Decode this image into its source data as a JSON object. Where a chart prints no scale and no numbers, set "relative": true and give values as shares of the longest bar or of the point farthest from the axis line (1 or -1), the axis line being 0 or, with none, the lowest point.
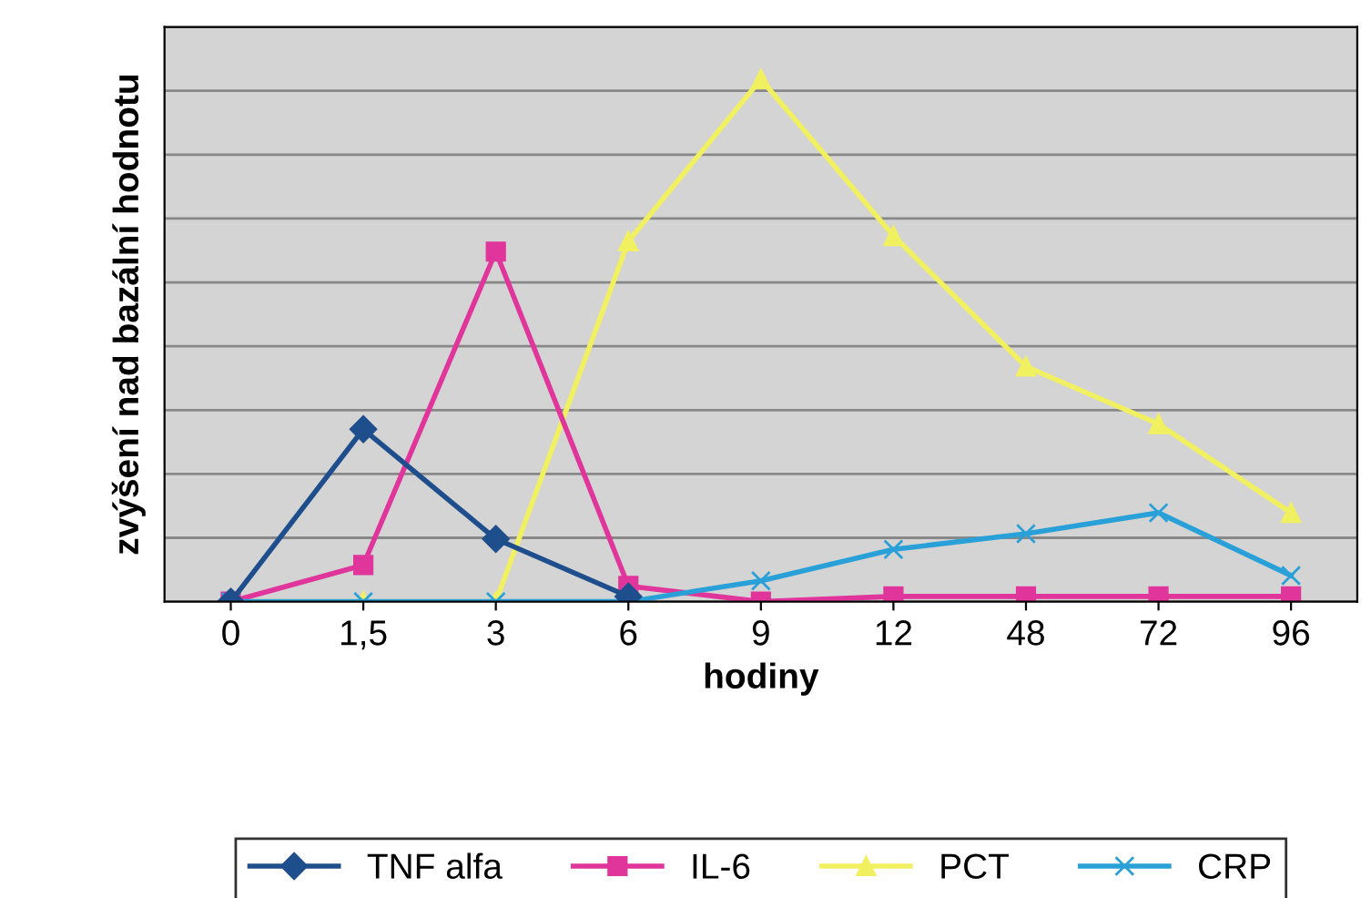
{
  "chart_data": {
    "type": "line",
    "relative": true,
    "ylabel": "zvýšení nad bazální hodnotu",
    "xlabel": "hodiny",
    "categories": [
      "0",
      "1,5",
      "3",
      "6",
      "9",
      "12",
      "48",
      "72",
      "96"
    ],
    "series": [
      {
        "name": "TNF alfa",
        "color": "#1f4e8c",
        "marker": "diamond",
        "values": [
          0,
          0.33,
          0.12,
          0.01,
          null,
          null,
          null,
          null,
          null
        ]
      },
      {
        "name": "IL-6",
        "color": "#e0359a",
        "marker": "square",
        "values": [
          0,
          0.07,
          0.67,
          0.03,
          0,
          0.01,
          0.01,
          0.01,
          0.01
        ]
      },
      {
        "name": "PCT",
        "color": "#f0f060",
        "marker": "triangle",
        "values": [
          0,
          0,
          0,
          0.69,
          1,
          0.7,
          0.45,
          0.34,
          0.17
        ]
      },
      {
        "name": "CRP",
        "color": "#2aa0d8",
        "marker": "cross",
        "values": [
          0,
          0,
          0,
          0,
          0.04,
          0.1,
          0.13,
          0.17,
          0.05
        ]
      }
    ],
    "grid": "y",
    "legend": "bottom"
  }
}
